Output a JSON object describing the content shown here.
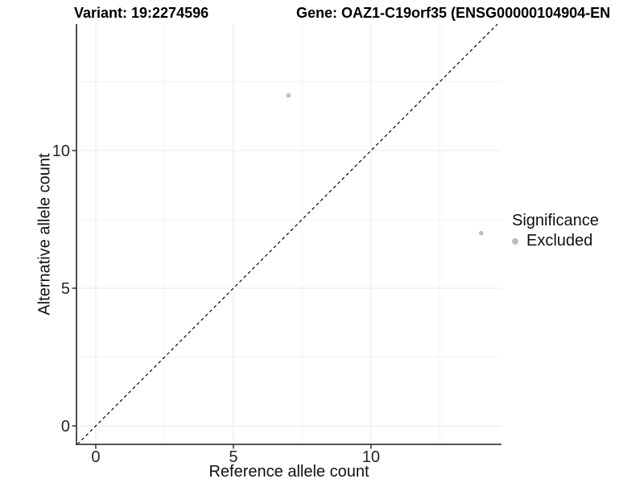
{
  "chart_data": {
    "type": "scatter",
    "titles": {
      "left": "Variant: 19:2274596",
      "right": "Gene: OAZ1-C19orf35 (ENSG00000104904-EN"
    },
    "xlabel": "Reference allele count",
    "ylabel": "Alternative allele count",
    "xlim": [
      -0.7,
      14.74
    ],
    "ylim": [
      -0.67,
      14.59
    ],
    "x_ticks": [
      0,
      5,
      10
    ],
    "y_ticks": [
      0,
      5,
      10
    ],
    "x_minor_ticks": [
      2.5,
      7.5,
      12.5
    ],
    "y_minor_ticks": [
      2.5,
      7.5,
      12.5
    ],
    "grid": "major+minor",
    "identity_line": {
      "type": "dashed",
      "color": "#000000",
      "equation": "y = x"
    },
    "points": [
      {
        "x": 7,
        "y": 12,
        "series": "Excluded"
      },
      {
        "x": 14,
        "y": 7,
        "series": "Excluded"
      }
    ],
    "point_color": "#bdbdbd",
    "legend": {
      "title": "Significance",
      "position": "right",
      "entries": [
        {
          "label": "Excluded",
          "color": "#bdbdbd"
        }
      ]
    },
    "colors": {
      "axis_line": "#3d3d3d",
      "tick_mark": "#333333",
      "tick_label": "#262626",
      "grid_major": "#e8e8e8",
      "grid_minor": "#f3f3f3",
      "background": "#ffffff"
    }
  }
}
